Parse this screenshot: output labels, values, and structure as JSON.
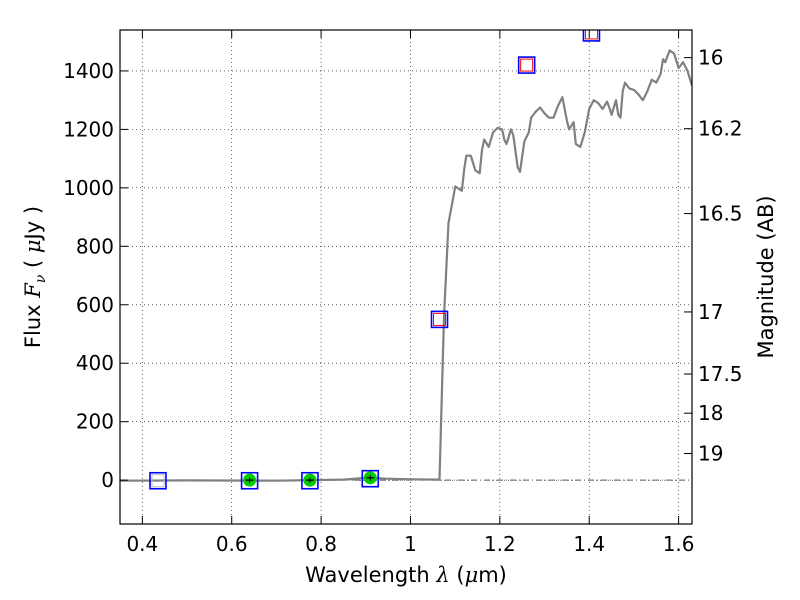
{
  "chart_data": {
    "type": "scatter",
    "xlabel": "Wavelength  λ (μm)",
    "ylabel": "Flux  F_ν  ( μJy )",
    "ylabel_parts": {
      "prefix": "Flux  ",
      "symbol": "F",
      "subscript": "ν",
      "middle": "  ( ",
      "mu": "μ",
      "unit": "Jy )"
    },
    "xlabel_parts": {
      "prefix": "Wavelength  ",
      "symbol": "λ",
      "open": " (",
      "mu": "μ",
      "unit": "m)"
    },
    "y2label": "Magnitude (AB)",
    "xlim": [
      0.35,
      1.63
    ],
    "ylim": [
      -150,
      1540
    ],
    "grid": true,
    "x_ticks": [
      0.4,
      0.6,
      0.8,
      1.0,
      1.2,
      1.4,
      1.6
    ],
    "x_tick_labels": [
      "0.4",
      "0.6",
      "0.8",
      "1",
      "1.2",
      "1.4",
      "1.6"
    ],
    "y_ticks": [
      0,
      200,
      400,
      600,
      800,
      1000,
      1200,
      1400
    ],
    "y_tick_labels": [
      "0",
      "200",
      "400",
      "600",
      "800",
      "1000",
      "1200",
      "1400"
    ],
    "y2_ticks": [
      {
        "label": "16",
        "mag": 16.0
      },
      {
        "label": "16.2",
        "mag": 16.2
      },
      {
        "label": "16.5",
        "mag": 16.5
      },
      {
        "label": "17",
        "mag": 17.0
      },
      {
        "label": "17.5",
        "mag": 17.5
      },
      {
        "label": "18",
        "mag": 18.0
      },
      {
        "label": "19",
        "mag": 19.0
      }
    ],
    "series": [
      {
        "kind": "model_spectrum",
        "color": "#808080",
        "points": [
          [
            0.35,
            -2
          ],
          [
            0.5,
            -1
          ],
          [
            0.7,
            -2
          ],
          [
            0.85,
            2
          ],
          [
            0.9,
            8
          ],
          [
            0.95,
            5
          ],
          [
            1.0,
            3
          ],
          [
            1.065,
            2
          ],
          [
            1.075,
            560
          ],
          [
            1.085,
            880
          ],
          [
            1.095,
            960
          ],
          [
            1.1,
            1005
          ],
          [
            1.115,
            990
          ],
          [
            1.12,
            1060
          ],
          [
            1.125,
            1110
          ],
          [
            1.135,
            1110
          ],
          [
            1.145,
            1060
          ],
          [
            1.155,
            1050
          ],
          [
            1.16,
            1130
          ],
          [
            1.165,
            1165
          ],
          [
            1.175,
            1140
          ],
          [
            1.185,
            1190
          ],
          [
            1.195,
            1205
          ],
          [
            1.205,
            1200
          ],
          [
            1.21,
            1165
          ],
          [
            1.215,
            1150
          ],
          [
            1.225,
            1200
          ],
          [
            1.23,
            1180
          ],
          [
            1.24,
            1070
          ],
          [
            1.245,
            1055
          ],
          [
            1.255,
            1160
          ],
          [
            1.265,
            1190
          ],
          [
            1.27,
            1240
          ],
          [
            1.28,
            1260
          ],
          [
            1.29,
            1275
          ],
          [
            1.3,
            1255
          ],
          [
            1.31,
            1240
          ],
          [
            1.32,
            1240
          ],
          [
            1.33,
            1280
          ],
          [
            1.34,
            1310
          ],
          [
            1.35,
            1230
          ],
          [
            1.355,
            1200
          ],
          [
            1.365,
            1225
          ],
          [
            1.37,
            1150
          ],
          [
            1.38,
            1140
          ],
          [
            1.39,
            1190
          ],
          [
            1.4,
            1270
          ],
          [
            1.41,
            1300
          ],
          [
            1.42,
            1290
          ],
          [
            1.43,
            1270
          ],
          [
            1.44,
            1295
          ],
          [
            1.445,
            1275
          ],
          [
            1.45,
            1250
          ],
          [
            1.46,
            1300
          ],
          [
            1.465,
            1250
          ],
          [
            1.47,
            1240
          ],
          [
            1.475,
            1330
          ],
          [
            1.48,
            1360
          ],
          [
            1.49,
            1340
          ],
          [
            1.5,
            1335
          ],
          [
            1.51,
            1320
          ],
          [
            1.52,
            1300
          ],
          [
            1.53,
            1330
          ],
          [
            1.54,
            1370
          ],
          [
            1.55,
            1360
          ],
          [
            1.56,
            1390
          ],
          [
            1.565,
            1440
          ],
          [
            1.57,
            1430
          ],
          [
            1.575,
            1450
          ],
          [
            1.58,
            1470
          ],
          [
            1.59,
            1460
          ],
          [
            1.6,
            1410
          ],
          [
            1.61,
            1430
          ],
          [
            1.62,
            1400
          ],
          [
            1.63,
            1350
          ]
        ]
      },
      {
        "kind": "model_flux",
        "marker": "open-square",
        "color": "#0000ff",
        "points": [
          [
            0.435,
            -2
          ],
          [
            0.64,
            -2
          ],
          [
            0.775,
            -2
          ],
          [
            0.91,
            5
          ],
          [
            1.065,
            550
          ],
          [
            1.26,
            1420
          ],
          [
            1.405,
            1530
          ]
        ]
      },
      {
        "kind": "observed_flux",
        "marker": "square",
        "color": "#ff0000",
        "points": [
          [
            1.065,
            550
          ],
          [
            1.26,
            1420
          ],
          [
            1.405,
            1530
          ]
        ]
      },
      {
        "kind": "observed_flux",
        "marker": "circle",
        "color": "#00cc00",
        "points": [
          [
            0.64,
            0
          ],
          [
            0.775,
            0
          ],
          [
            0.91,
            8
          ]
        ],
        "errors": [
          10,
          10,
          10
        ]
      },
      {
        "kind": "upper_limit",
        "marker": "square",
        "color": "#c0c0c0",
        "points": [
          [
            0.435,
            -2
          ]
        ]
      }
    ]
  }
}
